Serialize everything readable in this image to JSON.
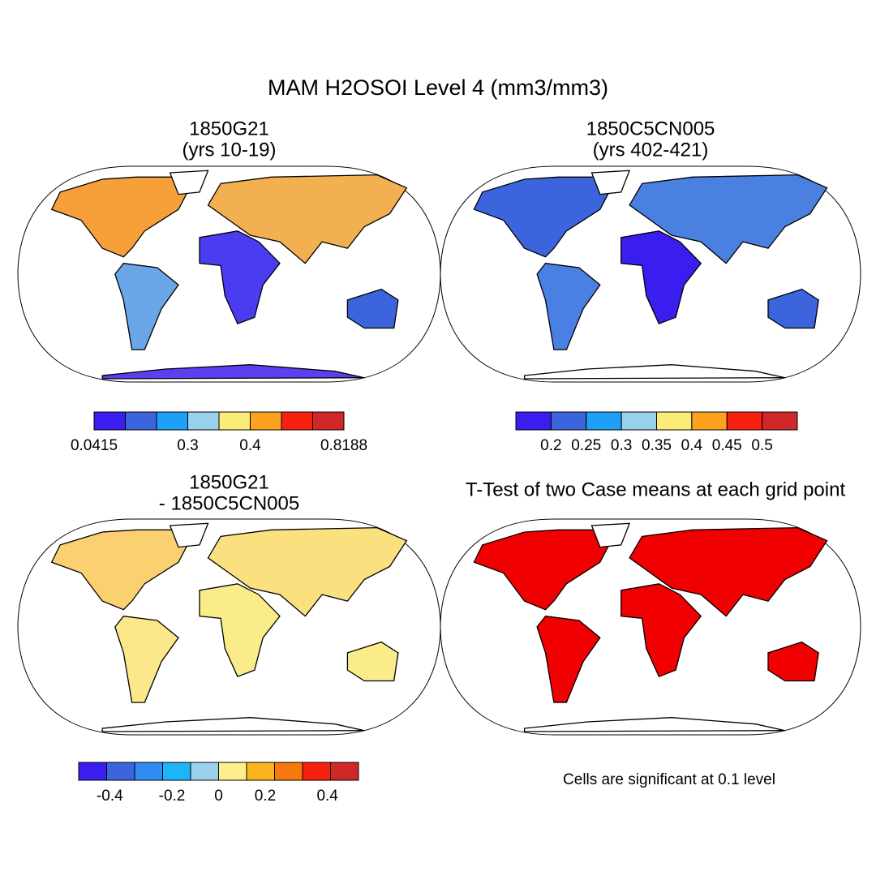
{
  "title": "MAM H2OSOI Level 4 (mm3/mm3)",
  "panels": [
    {
      "title": [
        "1850G21",
        "(yrs 10-19)"
      ]
    },
    {
      "title": [
        "1850C5CN005",
        "(yrs 402-421)"
      ]
    },
    {
      "title": [
        "1850G21",
        "- 1850C5CN005"
      ]
    },
    {
      "title": [
        "T-Test of two Case means at each grid point"
      ]
    }
  ],
  "colorbars": [
    {
      "colors": [
        "#3a1ef0",
        "#3c64dc",
        "#1ea0f8",
        "#9ad2ee",
        "#fbec78",
        "#fba21e",
        "#f8200e",
        "#d02828"
      ],
      "labels": [
        "0.0415",
        "0.3",
        "0.4",
        "0.8188"
      ]
    },
    {
      "colors": [
        "#3a1ef0",
        "#3c64dc",
        "#1ea0f8",
        "#9ad2ee",
        "#fbec78",
        "#fba21e",
        "#f8200e",
        "#d02828"
      ],
      "labels": [
        "0.2",
        "0.25",
        "0.3",
        "0.35",
        "0.4",
        "0.45",
        "0.5"
      ]
    },
    {
      "colors": [
        "#3a1ef0",
        "#3c64dc",
        "#2f8cf0",
        "#1eb4f8",
        "#9ad2ee",
        "#fdf08c",
        "#fbb41e",
        "#f8780e",
        "#f8200e",
        "#d02828"
      ],
      "labels": [
        "-0.4",
        "-0.2",
        "0",
        "0.2",
        "0.4"
      ]
    }
  ],
  "note": "Cells are significant at 0.1 level"
}
